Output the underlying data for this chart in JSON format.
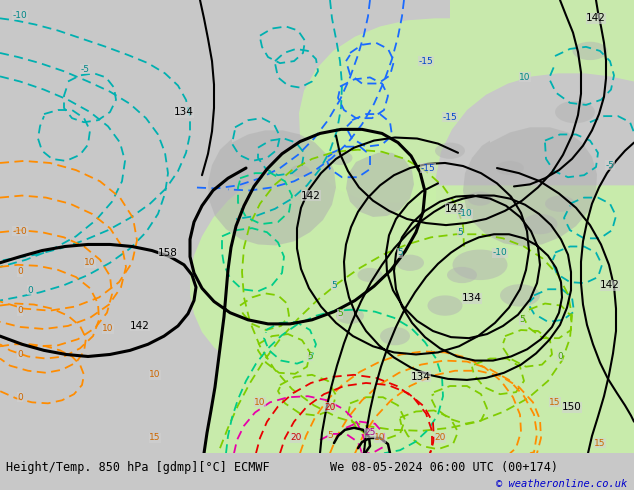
{
  "title": "Height/Temp. 850 hPa [gdmp][°C] ECMWF",
  "date_label": "We 08-05-2024 06:00 UTC (00+174)",
  "copyright": "© weatheronline.co.uk",
  "fig_width": 6.34,
  "fig_height": 4.9,
  "dpi": 100,
  "bg_color": "#c8c8c8",
  "map_bg_color": "#d2d2d2",
  "green_light": "#c8f0a8",
  "green_mid": "#b0e890",
  "green_dark": "#98d878",
  "gray_land": "#b4b4b4",
  "title_fontsize": 8.5,
  "date_fontsize": 8.5,
  "copyright_fontsize": 7.5,
  "copyright_color": "#0000cc",
  "black_contour_lw": 2.2,
  "thin_contour_lw": 1.5,
  "temp_contour_lw": 1.3,
  "temp_dashes": [
    5,
    3
  ],
  "colors": {
    "cyan": "#00b0b0",
    "blue": "#1a6aff",
    "green_yellow": "#80cc00",
    "green_teal": "#00cc88",
    "orange": "#ff8c00",
    "red": "#e80000",
    "magenta": "#e800aa",
    "black": "#000000",
    "label_cyan": "#008888",
    "label_blue": "#0044cc",
    "label_green": "#44aa00",
    "label_orange": "#cc6600",
    "label_red": "#cc0000",
    "label_magenta": "#aa0088"
  }
}
